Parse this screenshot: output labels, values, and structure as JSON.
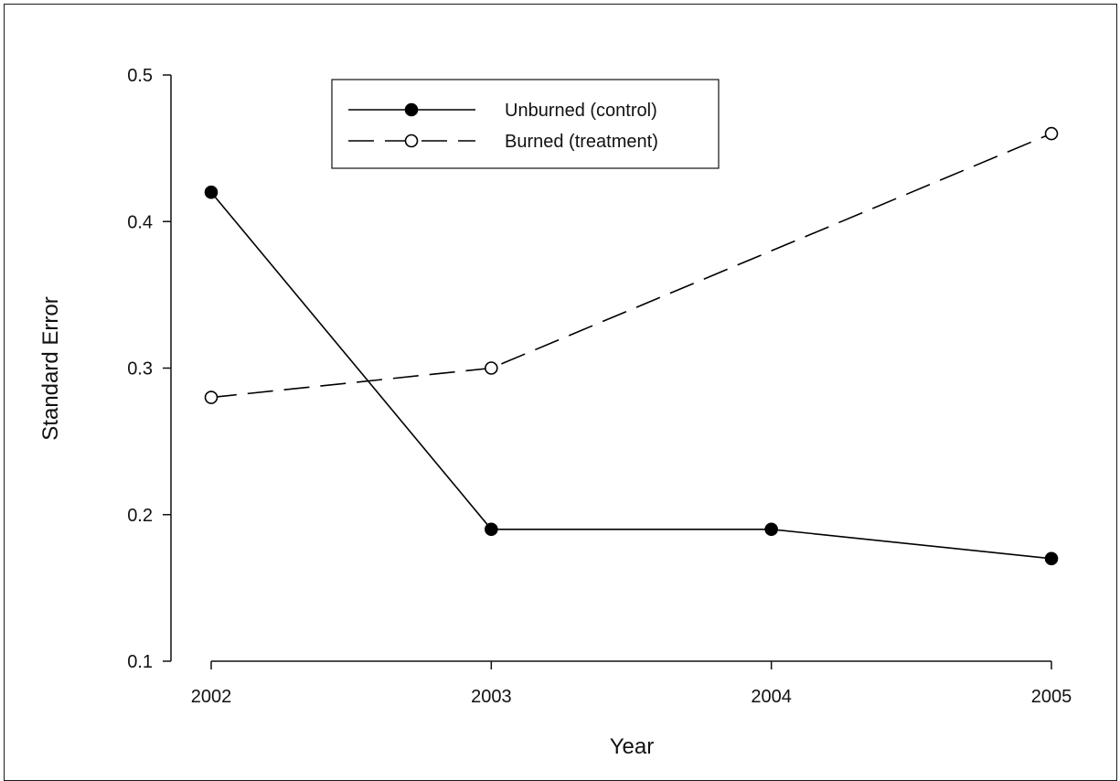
{
  "chart_data": {
    "type": "line",
    "title": "",
    "xlabel": "Year",
    "ylabel": "Standard Error",
    "x": [
      "2002",
      "2003",
      "2004",
      "2005"
    ],
    "ylim": [
      0.1,
      0.5
    ],
    "yticks": [
      "0.1",
      "0.2",
      "0.3",
      "0.4",
      "0.5"
    ],
    "grid": false,
    "legend_position": "top-center",
    "series": [
      {
        "name": "Unburned (control)",
        "values": [
          0.42,
          0.19,
          0.19,
          0.17
        ],
        "line_style": "solid",
        "marker": "filled-circle",
        "color": "#000000"
      },
      {
        "name": "Burned (treatment)",
        "values": [
          0.28,
          0.3,
          0.38,
          0.46
        ],
        "line_style": "dashed",
        "marker": "open-circle",
        "color": "#000000",
        "marked_points": [
          true,
          true,
          false,
          true
        ]
      }
    ]
  }
}
